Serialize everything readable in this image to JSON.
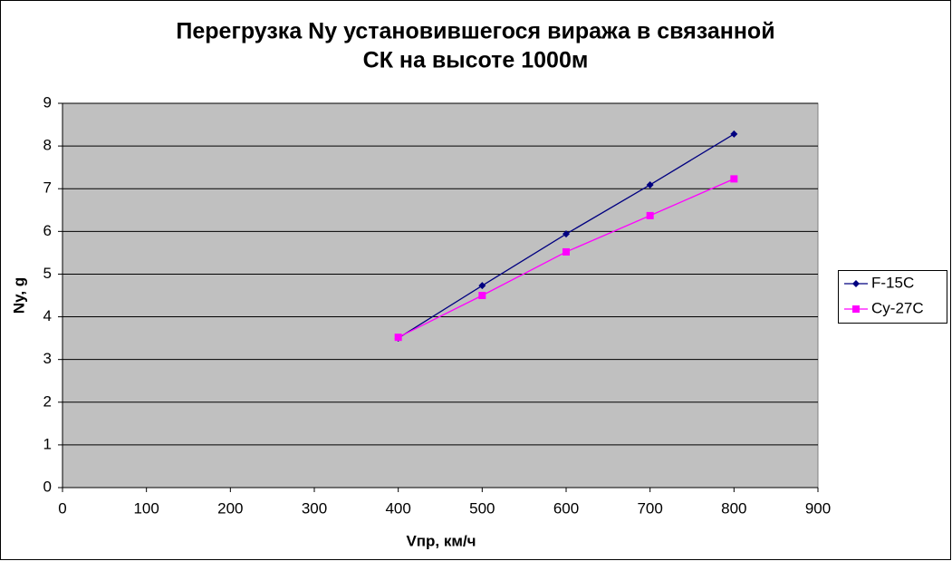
{
  "chart_data": {
    "type": "line",
    "title": [
      "Перегрузка Ny установившегося виража в связанной",
      "СК на высоте 1000м"
    ],
    "x_label": "Vпр, км/ч",
    "y_label": "Ny, g",
    "xlim": [
      0,
      900
    ],
    "xticks": [
      0,
      100,
      200,
      300,
      400,
      500,
      600,
      700,
      800,
      900
    ],
    "ylim": [
      0,
      9
    ],
    "yticks": [
      0,
      1,
      2,
      3,
      4,
      5,
      6,
      7,
      8,
      9
    ],
    "grid": true,
    "legend": "right",
    "series": [
      {
        "name": "F-15C",
        "color": "#000080",
        "marker": "diamond",
        "x": [
          400,
          500,
          600,
          700,
          800
        ],
        "values": [
          3.5,
          4.73,
          5.94,
          7.09,
          8.28
        ]
      },
      {
        "name": "Су-27С",
        "color": "#ff00ff",
        "marker": "square",
        "x": [
          400,
          500,
          600,
          700,
          800
        ],
        "values": [
          3.52,
          4.5,
          5.52,
          6.37,
          7.23
        ]
      }
    ]
  }
}
